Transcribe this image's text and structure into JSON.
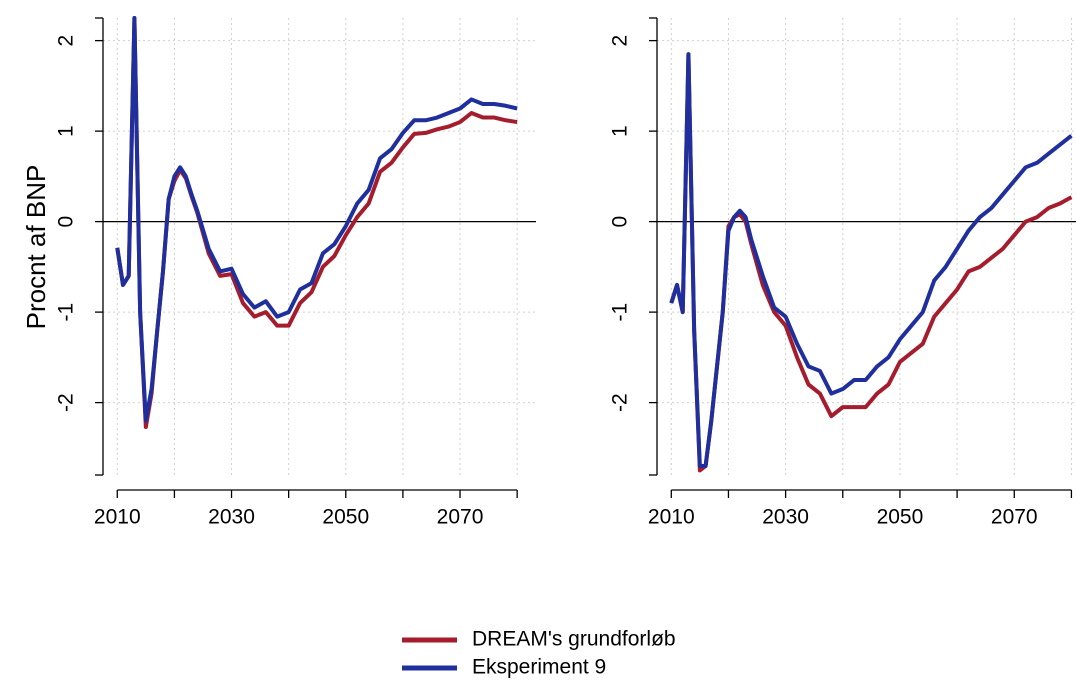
{
  "chart_data": [
    {
      "type": "line",
      "y_label": "Procnt af BNP",
      "x": [
        2010,
        2011,
        2012,
        2013,
        2014,
        2015,
        2016,
        2017,
        2018,
        2019,
        2020,
        2021,
        2022,
        2023,
        2024,
        2026,
        2028,
        2030,
        2032,
        2034,
        2036,
        2038,
        2040,
        2042,
        2044,
        2046,
        2048,
        2050,
        2052,
        2054,
        2056,
        2058,
        2060,
        2062,
        2064,
        2066,
        2068,
        2070,
        2072,
        2074,
        2076,
        2078,
        2080
      ],
      "series": [
        {
          "name": "DREAM's grundforløb",
          "color": "#a51d2d",
          "values": [
            -0.29,
            -0.7,
            -0.6,
            2.25,
            -1.0,
            -2.27,
            -1.9,
            -1.2,
            -0.55,
            0.25,
            0.45,
            0.57,
            0.48,
            0.28,
            0.1,
            -0.35,
            -0.6,
            -0.58,
            -0.9,
            -1.05,
            -1.0,
            -1.15,
            -1.15,
            -0.9,
            -0.78,
            -0.5,
            -0.38,
            -0.15,
            0.05,
            0.2,
            0.55,
            0.65,
            0.82,
            0.97,
            0.98,
            1.02,
            1.05,
            1.1,
            1.2,
            1.15,
            1.15,
            1.12,
            1.1
          ]
        },
        {
          "name": "Eksperiment 9",
          "color": "#1f2f9e",
          "values": [
            -0.29,
            -0.7,
            -0.6,
            2.25,
            -1.0,
            -2.2,
            -1.85,
            -1.2,
            -0.55,
            0.25,
            0.5,
            0.6,
            0.5,
            0.3,
            0.12,
            -0.3,
            -0.55,
            -0.52,
            -0.8,
            -0.95,
            -0.88,
            -1.05,
            -1.0,
            -0.75,
            -0.68,
            -0.35,
            -0.25,
            -0.05,
            0.2,
            0.35,
            0.7,
            0.8,
            0.98,
            1.12,
            1.12,
            1.15,
            1.2,
            1.25,
            1.35,
            1.3,
            1.3,
            1.28,
            1.25
          ]
        }
      ],
      "xlim": [
        2007.5,
        2083.3
      ],
      "xticks": [
        2010,
        2030,
        2050,
        2070
      ],
      "xgrid": [
        2010,
        2020,
        2030,
        2040,
        2050,
        2060,
        2070,
        2080
      ],
      "ylim": [
        -2.8,
        2.25
      ],
      "yticks": [
        -2,
        -1,
        0,
        1,
        2
      ],
      "grid": true,
      "reference_line": 0,
      "legend": "bottom"
    },
    {
      "type": "line",
      "x": [
        2010,
        2011,
        2012,
        2013,
        2014,
        2015,
        2016,
        2017,
        2018,
        2019,
        2020,
        2021,
        2022,
        2023,
        2024,
        2026,
        2028,
        2030,
        2032,
        2034,
        2036,
        2038,
        2040,
        2042,
        2044,
        2046,
        2048,
        2050,
        2052,
        2054,
        2056,
        2058,
        2060,
        2062,
        2064,
        2066,
        2068,
        2070,
        2072,
        2074,
        2076,
        2078,
        2080
      ],
      "series": [
        {
          "color": "#a51d2d",
          "values": [
            -0.9,
            -0.7,
            -1.0,
            1.85,
            -1.2,
            -2.75,
            -2.7,
            -2.2,
            -1.6,
            -1.0,
            -0.05,
            0.05,
            0.08,
            0.0,
            -0.25,
            -0.7,
            -1.0,
            -1.15,
            -1.5,
            -1.8,
            -1.9,
            -2.15,
            -2.05,
            -2.05,
            -2.05,
            -1.9,
            -1.8,
            -1.55,
            -1.45,
            -1.35,
            -1.05,
            -0.9,
            -0.75,
            -0.55,
            -0.5,
            -0.4,
            -0.3,
            -0.15,
            0.0,
            0.05,
            0.15,
            0.2,
            0.27
          ]
        },
        {
          "color": "#1f2f9e",
          "values": [
            -0.9,
            -0.7,
            -1.0,
            1.85,
            -1.2,
            -2.7,
            -2.7,
            -2.2,
            -1.6,
            -1.0,
            -0.1,
            0.05,
            0.12,
            0.05,
            -0.2,
            -0.6,
            -0.95,
            -1.05,
            -1.35,
            -1.6,
            -1.65,
            -1.9,
            -1.85,
            -1.75,
            -1.75,
            -1.6,
            -1.5,
            -1.3,
            -1.15,
            -1.0,
            -0.65,
            -0.5,
            -0.3,
            -0.1,
            0.05,
            0.15,
            0.3,
            0.45,
            0.6,
            0.65,
            0.75,
            0.85,
            0.95
          ]
        }
      ],
      "xlim": [
        2007.5,
        2080.8
      ],
      "xticks": [
        2010,
        2030,
        2050,
        2070
      ],
      "xgrid": [
        2010,
        2020,
        2030,
        2040,
        2050,
        2060,
        2070,
        2080
      ],
      "ylim": [
        -2.8,
        2.25
      ],
      "yticks": [
        -2,
        -1,
        0,
        1,
        2
      ],
      "grid": true,
      "reference_line": 0
    }
  ]
}
